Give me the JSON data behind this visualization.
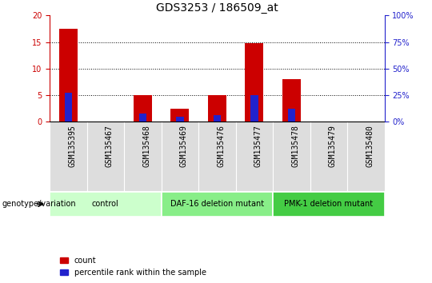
{
  "title": "GDS3253 / 186509_at",
  "samples": [
    "GSM135395",
    "GSM135467",
    "GSM135468",
    "GSM135469",
    "GSM135476",
    "GSM135477",
    "GSM135478",
    "GSM135479",
    "GSM135480"
  ],
  "counts": [
    17.5,
    0.05,
    5.0,
    2.5,
    5.0,
    14.8,
    8.0,
    0.05,
    0.05
  ],
  "percentiles": [
    27.5,
    0.5,
    7.5,
    5.0,
    6.0,
    25.0,
    12.5,
    0.5,
    0.5
  ],
  "groups": [
    {
      "label": "control",
      "start": 0,
      "end": 3,
      "color": "#ccffcc",
      "border": "#aaddaa"
    },
    {
      "label": "DAF-16 deletion mutant",
      "start": 3,
      "end": 6,
      "color": "#88ee88",
      "border": "#66cc66"
    },
    {
      "label": "PMK-1 deletion mutant",
      "start": 6,
      "end": 9,
      "color": "#44cc44",
      "border": "#22aa22"
    }
  ],
  "bar_color_red": "#cc0000",
  "bar_color_blue": "#2222cc",
  "ylim_left": [
    0,
    20
  ],
  "ylim_right": [
    0,
    100
  ],
  "yticks_left": [
    0,
    5,
    10,
    15,
    20
  ],
  "yticks_right": [
    0,
    25,
    50,
    75,
    100
  ],
  "ylabel_left_color": "#cc0000",
  "ylabel_right_color": "#2222cc",
  "bar_width": 0.5,
  "blue_bar_width": 0.2,
  "legend_count": "count",
  "legend_percentile": "percentile rank within the sample",
  "genotype_label": "genotype/variation",
  "title_fontsize": 10,
  "tick_fontsize": 7,
  "group_fontsize": 7,
  "label_fontsize": 7
}
